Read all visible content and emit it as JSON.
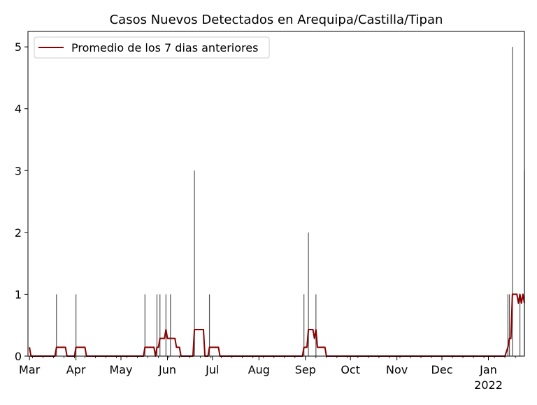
{
  "chart_data": {
    "type": "bar+line",
    "title": "Casos Nuevos Detectados en Arequipa/Castilla/Tipan",
    "xlabel": "",
    "ylabel": "",
    "xlim": [
      "2021-02-28",
      "2022-01-25"
    ],
    "ylim": [
      0,
      5.25
    ],
    "yticks": [
      0,
      1,
      2,
      3,
      4,
      5
    ],
    "xticks": [
      {
        "date": "2021-03-01",
        "label": "Mar"
      },
      {
        "date": "2021-04-01",
        "label": "Apr"
      },
      {
        "date": "2021-05-01",
        "label": "May"
      },
      {
        "date": "2021-06-01",
        "label": "Jun"
      },
      {
        "date": "2021-07-01",
        "label": "Jul"
      },
      {
        "date": "2021-08-01",
        "label": "Aug"
      },
      {
        "date": "2021-09-01",
        "label": "Sep"
      },
      {
        "date": "2021-10-01",
        "label": "Oct"
      },
      {
        "date": "2021-11-01",
        "label": "Nov"
      },
      {
        "date": "2021-12-01",
        "label": "Dec"
      },
      {
        "date": "2022-01-01",
        "label": "Jan",
        "sublabel": "2022"
      }
    ],
    "grid": false,
    "legend_position": "top-left",
    "bars": {
      "color": "#555555",
      "points": [
        {
          "date": "2021-03-19",
          "value": 1
        },
        {
          "date": "2021-04-01",
          "value": 1
        },
        {
          "date": "2021-05-17",
          "value": 1
        },
        {
          "date": "2021-05-25",
          "value": 1
        },
        {
          "date": "2021-05-27",
          "value": 1
        },
        {
          "date": "2021-05-31",
          "value": 1
        },
        {
          "date": "2021-06-03",
          "value": 1
        },
        {
          "date": "2021-06-19",
          "value": 3
        },
        {
          "date": "2021-06-29",
          "value": 1
        },
        {
          "date": "2021-08-31",
          "value": 1
        },
        {
          "date": "2021-09-03",
          "value": 2
        },
        {
          "date": "2021-09-08",
          "value": 1
        },
        {
          "date": "2022-01-14",
          "value": 1
        },
        {
          "date": "2022-01-15",
          "value": 1
        },
        {
          "date": "2022-01-17",
          "value": 5
        },
        {
          "date": "2022-01-22",
          "value": 1
        },
        {
          "date": "2022-01-25",
          "value": 3
        }
      ]
    },
    "series": [
      {
        "name": "Promedio de los 7 dias anteriores",
        "color": "#8b0000",
        "points": [
          [
            "2021-03-01",
            0.143
          ],
          [
            "2021-03-02",
            0
          ],
          [
            "2021-03-18",
            0
          ],
          [
            "2021-03-19",
            0.143
          ],
          [
            "2021-03-25",
            0.143
          ],
          [
            "2021-03-26",
            0
          ],
          [
            "2021-03-31",
            0
          ],
          [
            "2021-04-01",
            0.143
          ],
          [
            "2021-04-07",
            0.143
          ],
          [
            "2021-04-08",
            0
          ],
          [
            "2021-05-16",
            0
          ],
          [
            "2021-05-17",
            0.143
          ],
          [
            "2021-05-23",
            0.143
          ],
          [
            "2021-05-24",
            0
          ],
          [
            "2021-05-25",
            0.143
          ],
          [
            "2021-05-26",
            0.143
          ],
          [
            "2021-05-27",
            0.286
          ],
          [
            "2021-05-30",
            0.286
          ],
          [
            "2021-05-31",
            0.429
          ],
          [
            "2021-06-01",
            0.286
          ],
          [
            "2021-06-06",
            0.286
          ],
          [
            "2021-06-07",
            0.143
          ],
          [
            "2021-06-09",
            0.143
          ],
          [
            "2021-06-10",
            0
          ],
          [
            "2021-06-18",
            0
          ],
          [
            "2021-06-19",
            0.429
          ],
          [
            "2021-06-25",
            0.429
          ],
          [
            "2021-06-26",
            0
          ],
          [
            "2021-06-28",
            0
          ],
          [
            "2021-06-29",
            0.143
          ],
          [
            "2021-07-05",
            0.143
          ],
          [
            "2021-07-06",
            0
          ],
          [
            "2021-08-30",
            0
          ],
          [
            "2021-08-31",
            0.143
          ],
          [
            "2021-09-02",
            0.143
          ],
          [
            "2021-09-03",
            0.429
          ],
          [
            "2021-09-06",
            0.429
          ],
          [
            "2021-09-07",
            0.286
          ],
          [
            "2021-09-08",
            0.429
          ],
          [
            "2021-09-09",
            0.143
          ],
          [
            "2021-09-14",
            0.143
          ],
          [
            "2021-09-15",
            0
          ],
          [
            "2022-01-12",
            0
          ],
          [
            "2022-01-14",
            0.143
          ],
          [
            "2022-01-15",
            0.286
          ],
          [
            "2022-01-16",
            0.286
          ],
          [
            "2022-01-17",
            1.0
          ],
          [
            "2022-01-20",
            1.0
          ],
          [
            "2022-01-21",
            0.857
          ],
          [
            "2022-01-22",
            1.0
          ],
          [
            "2022-01-23",
            0.857
          ],
          [
            "2022-01-24",
            1.0
          ],
          [
            "2022-01-25",
            0.857
          ]
        ]
      }
    ]
  }
}
